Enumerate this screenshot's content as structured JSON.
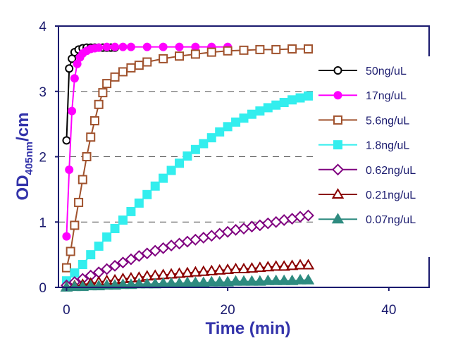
{
  "chart_data": {
    "type": "scatter",
    "title": "",
    "xlabel": "Time (min)",
    "ylabel_main": "OD",
    "ylabel_sub": "405nm",
    "ylabel_suffix": "/cm",
    "xlim": [
      -1,
      45
    ],
    "ylim": [
      0,
      4
    ],
    "xticks": [
      0,
      20,
      40
    ],
    "yticks": [
      0,
      1,
      2,
      3,
      4
    ],
    "grid": "dashed horizontal lines at y = 1, 2, 3",
    "legend_position": "right",
    "colors": {
      "axis": "#1a1a6e",
      "grid": "#555555"
    },
    "series": [
      {
        "name": "50ng/uL",
        "marker": "circle-open",
        "color": "#000000",
        "x": [
          0,
          0.33,
          0.67,
          1,
          1.5,
          2,
          2.5,
          3,
          3.5,
          4,
          4.5,
          5,
          5.5,
          6
        ],
        "y": [
          2.25,
          3.35,
          3.5,
          3.6,
          3.64,
          3.66,
          3.67,
          3.67,
          3.67,
          3.67,
          3.67,
          3.67,
          3.67,
          3.67
        ]
      },
      {
        "name": "17ng/uL",
        "marker": "circle-filled",
        "color": "#ff00ff",
        "x": [
          0,
          0.33,
          0.67,
          1,
          1.33,
          1.67,
          2,
          2.5,
          3,
          3.5,
          4,
          5,
          6,
          7,
          8,
          10,
          12,
          14,
          16,
          18,
          20
        ],
        "y": [
          0.78,
          1.8,
          2.7,
          3.2,
          3.42,
          3.52,
          3.58,
          3.62,
          3.65,
          3.66,
          3.67,
          3.68,
          3.68,
          3.68,
          3.68,
          3.68,
          3.68,
          3.68,
          3.68,
          3.68,
          3.68
        ]
      },
      {
        "name": "5.6ng/uL",
        "marker": "square-open",
        "color": "#a0522d",
        "x": [
          0,
          0.5,
          1,
          1.5,
          2,
          2.5,
          3,
          3.5,
          4,
          4.5,
          5,
          6,
          7,
          8,
          9,
          10,
          12,
          14,
          16,
          18,
          20,
          22,
          24,
          26,
          28,
          30
        ],
        "y": [
          0.3,
          0.55,
          0.95,
          1.3,
          1.65,
          2.0,
          2.3,
          2.55,
          2.8,
          2.98,
          3.12,
          3.22,
          3.3,
          3.36,
          3.4,
          3.45,
          3.5,
          3.54,
          3.57,
          3.6,
          3.62,
          3.63,
          3.64,
          3.64,
          3.65,
          3.65
        ]
      },
      {
        "name": "1.8ng/uL",
        "marker": "square-filled",
        "color": "#33eeee",
        "x": [
          0,
          1,
          2,
          3,
          4,
          5,
          6,
          7,
          8,
          9,
          10,
          11,
          12,
          13,
          14,
          15,
          16,
          17,
          18,
          19,
          20,
          21,
          22,
          23,
          24,
          25,
          26,
          27,
          28,
          29,
          30
        ],
        "y": [
          0.1,
          0.22,
          0.35,
          0.5,
          0.63,
          0.77,
          0.9,
          1.03,
          1.16,
          1.29,
          1.42,
          1.55,
          1.67,
          1.79,
          1.9,
          2.01,
          2.11,
          2.2,
          2.29,
          2.38,
          2.46,
          2.53,
          2.59,
          2.65,
          2.7,
          2.75,
          2.79,
          2.83,
          2.87,
          2.9,
          2.93
        ]
      },
      {
        "name": "0.62ng/uL",
        "marker": "diamond-open",
        "color": "#800080",
        "x": [
          0,
          1,
          2,
          3,
          4,
          5,
          6,
          7,
          8,
          9,
          10,
          11,
          12,
          13,
          14,
          15,
          16,
          17,
          18,
          19,
          20,
          21,
          22,
          23,
          24,
          25,
          26,
          27,
          28,
          29,
          30
        ],
        "y": [
          0.03,
          0.08,
          0.13,
          0.18,
          0.23,
          0.28,
          0.33,
          0.38,
          0.43,
          0.48,
          0.52,
          0.56,
          0.6,
          0.64,
          0.67,
          0.7,
          0.73,
          0.76,
          0.79,
          0.82,
          0.85,
          0.88,
          0.9,
          0.93,
          0.95,
          0.98,
          1.0,
          1.03,
          1.05,
          1.08,
          1.1
        ]
      },
      {
        "name": "0.21ng/uL",
        "marker": "triangle-open",
        "color": "#8b0000",
        "x": [
          0,
          1,
          2,
          3,
          4,
          5,
          6,
          7,
          8,
          9,
          10,
          11,
          12,
          13,
          14,
          15,
          16,
          17,
          18,
          19,
          20,
          21,
          22,
          23,
          24,
          25,
          26,
          27,
          28,
          29,
          30
        ],
        "y": [
          0.0,
          0.02,
          0.04,
          0.06,
          0.08,
          0.1,
          0.11,
          0.13,
          0.14,
          0.15,
          0.17,
          0.18,
          0.19,
          0.2,
          0.21,
          0.22,
          0.23,
          0.24,
          0.25,
          0.26,
          0.27,
          0.28,
          0.28,
          0.29,
          0.3,
          0.31,
          0.32,
          0.32,
          0.33,
          0.34,
          0.34
        ]
      },
      {
        "name": "0.07ng/uL",
        "marker": "triangle-filled",
        "color": "#2e8b80",
        "x": [
          0,
          1,
          2,
          3,
          4,
          5,
          6,
          7,
          8,
          9,
          10,
          11,
          12,
          13,
          14,
          15,
          16,
          17,
          18,
          19,
          20,
          21,
          22,
          23,
          24,
          25,
          26,
          27,
          28,
          29,
          30
        ],
        "y": [
          0.0,
          0.01,
          0.01,
          0.02,
          0.02,
          0.03,
          0.03,
          0.04,
          0.04,
          0.05,
          0.05,
          0.05,
          0.06,
          0.06,
          0.06,
          0.07,
          0.07,
          0.07,
          0.08,
          0.08,
          0.08,
          0.09,
          0.09,
          0.09,
          0.09,
          0.1,
          0.1,
          0.1,
          0.1,
          0.11,
          0.11
        ]
      }
    ]
  }
}
